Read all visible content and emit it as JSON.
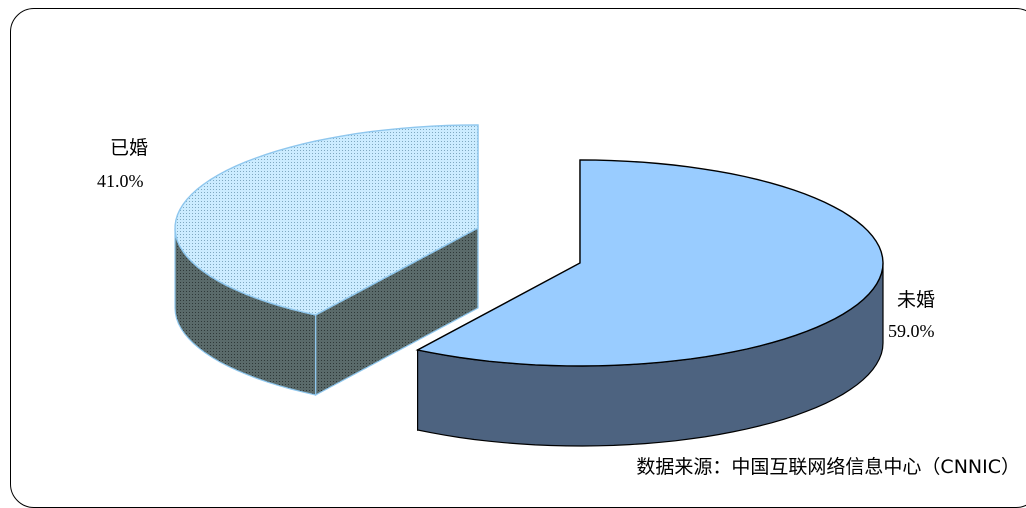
{
  "chart_data": {
    "type": "pie",
    "style": "3d-exploded",
    "slices": [
      {
        "label": "未婚",
        "value": 59.0,
        "value_label": "59.0%",
        "color": "#99CCFF",
        "side_color": "#4D6380"
      },
      {
        "label": "已婚",
        "value": 41.0,
        "value_label": "41.0%",
        "color": "#CCECFF",
        "side_color": "#4D5A5A",
        "pattern": "dotted"
      }
    ],
    "source": "数据来源：中国互联网络信息中心（CNNIC）"
  }
}
